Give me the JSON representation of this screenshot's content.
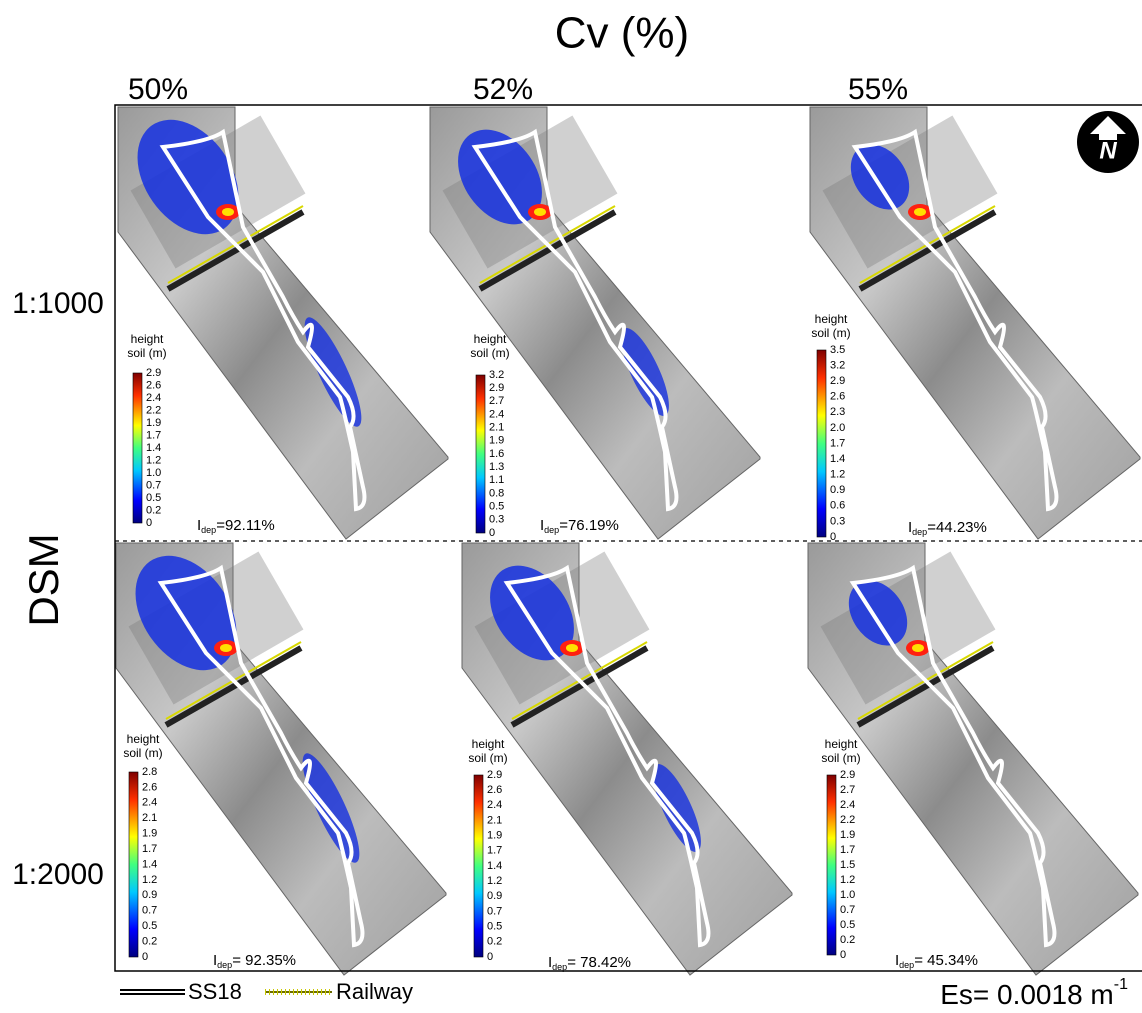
{
  "title": "Cv (%)",
  "columns": [
    "50%",
    "52%",
    "55%"
  ],
  "rows": [
    "1:1000",
    "1:2000"
  ],
  "row_group": "DSM",
  "north": "N",
  "legend": {
    "road": "SS18",
    "rail": "Railway"
  },
  "es": {
    "text": "Es= 0.0018 m",
    "sup": "-1"
  },
  "panels": [
    {
      "colorbar": {
        "title": [
          "height",
          "soil (m)"
        ],
        "labels": [
          "2.9",
          "2.6",
          "2.4",
          "2.2",
          "1.9",
          "1.7",
          "1.4",
          "1.2",
          "1.0",
          "0.7",
          "0.5",
          "0.2",
          "0"
        ]
      },
      "idep": {
        "symbol": "I",
        "sub": "dep",
        "value": "=92.11%"
      }
    },
    {
      "colorbar": {
        "title": [
          "height",
          "soil (m)"
        ],
        "labels": [
          "3.2",
          "2.9",
          "2.7",
          "2.4",
          "2.1",
          "1.9",
          "1.6",
          "1.3",
          "1.1",
          "0.8",
          "0.5",
          "0.3",
          "0"
        ]
      },
      "idep": {
        "symbol": "I",
        "sub": "dep",
        "value": "=76.19%"
      }
    },
    {
      "colorbar": {
        "title": [
          "height",
          "soil (m)"
        ],
        "labels": [
          "3.5",
          "3.2",
          "2.9",
          "2.6",
          "2.3",
          "2.0",
          "1.7",
          "1.4",
          "1.2",
          "0.9",
          "0.6",
          "0.3",
          "0"
        ]
      },
      "idep": {
        "symbol": "I",
        "sub": "dep",
        "value": "=44.23%"
      }
    },
    {
      "colorbar": {
        "title": [
          "height",
          "soil (m)"
        ],
        "labels": [
          "2.8",
          "2.6",
          "2.4",
          "2.1",
          "1.9",
          "1.7",
          "1.4",
          "1.2",
          "0.9",
          "0.7",
          "0.5",
          "0.2",
          "0"
        ]
      },
      "idep": {
        "symbol": "I",
        "sub": "dep",
        "value": "= 92.35%"
      }
    },
    {
      "colorbar": {
        "title": [
          "height",
          "soil (m)"
        ],
        "labels": [
          "2.9",
          "2.6",
          "2.4",
          "2.1",
          "1.9",
          "1.7",
          "1.4",
          "1.2",
          "0.9",
          "0.7",
          "0.5",
          "0.2",
          "0"
        ]
      },
      "idep": {
        "symbol": "I",
        "sub": "dep",
        "value": "= 78.42%"
      }
    },
    {
      "colorbar": {
        "title": [
          "height",
          "soil (m)"
        ],
        "labels": [
          "2.9",
          "2.7",
          "2.4",
          "2.2",
          "1.9",
          "1.7",
          "1.5",
          "1.2",
          "1.0",
          "0.7",
          "0.5",
          "0.2",
          "0"
        ]
      },
      "idep": {
        "symbol": "I",
        "sub": "dep",
        "value": "= 45.34%"
      }
    }
  ]
}
